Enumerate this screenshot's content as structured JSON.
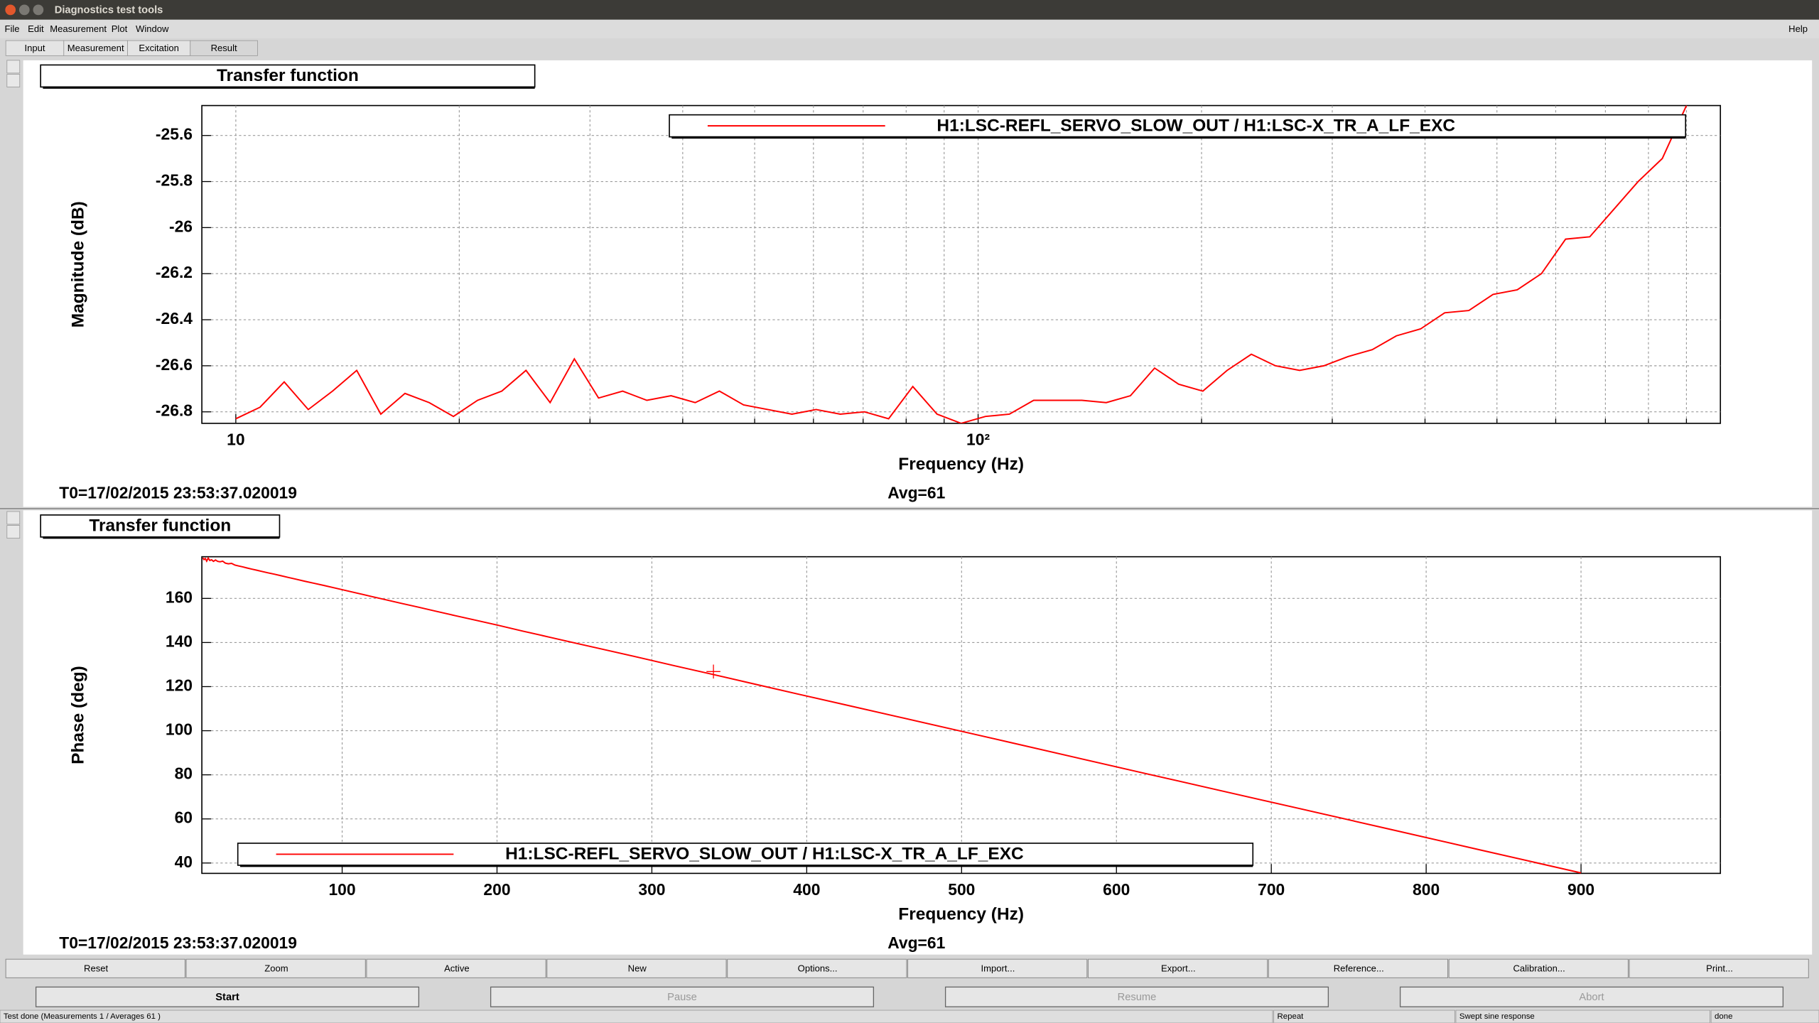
{
  "window": {
    "title": "Diagnostics test tools"
  },
  "menu": {
    "items": [
      "File",
      "Edit",
      "Measurement",
      "Plot",
      "Window"
    ],
    "help": "Help"
  },
  "tabs": [
    "Input",
    "Measurement",
    "Excitation",
    "Result"
  ],
  "chart_data": [
    {
      "type": "line",
      "title": "Transfer function",
      "x_label": "Frequency (Hz)",
      "y_label": "Magnitude (dB)",
      "x": [
        10,
        10.78,
        11.62,
        12.52,
        13.5,
        14.55,
        15.68,
        16.9,
        18.22,
        19.64,
        21.17,
        22.82,
        24.6,
        26.51,
        28.58,
        30.81,
        33.2,
        35.79,
        38.58,
        41.58,
        44.82,
        48.31,
        52.07,
        56.13,
        60.5,
        65.21,
        70.29,
        75.76,
        81.66,
        88.03,
        94.87,
        102.3,
        110.2,
        118.8,
        128.1,
        138,
        148.8,
        160.4,
        172.9,
        186.3,
        200.8,
        216.5,
        233.4,
        251.5,
        271.1,
        292.3,
        315,
        339.6,
        366,
        394.5,
        425.2,
        458.3,
        494,
        532.5,
        574,
        618.7,
        666.8,
        718.8,
        774.8,
        835.1,
        900
      ],
      "series": [
        {
          "name": "H1:LSC-REFL_SERVO_SLOW_OUT / H1:LSC-X_TR_A_LF_EXC",
          "color": "#ff0000",
          "values": [
            -26.83,
            -26.78,
            -26.67,
            -26.79,
            -26.71,
            -26.62,
            -26.81,
            -26.72,
            -26.76,
            -26.82,
            -26.75,
            -26.71,
            -26.62,
            -26.76,
            -26.57,
            -26.74,
            -26.71,
            -26.75,
            -26.73,
            -26.76,
            -26.71,
            -26.77,
            -26.79,
            -26.81,
            -26.79,
            -26.81,
            -26.8,
            -26.83,
            -26.69,
            -26.81,
            -26.85,
            -26.82,
            -26.81,
            -26.75,
            -26.75,
            -26.75,
            -26.76,
            -26.73,
            -26.61,
            -26.68,
            -26.71,
            -26.62,
            -26.55,
            -26.6,
            -26.62,
            -26.6,
            -26.56,
            -26.53,
            -26.47,
            -26.44,
            -26.37,
            -26.36,
            -26.29,
            -26.27,
            -26.2,
            -26.05,
            -26.04,
            -25.92,
            -25.8,
            -25.7,
            -25.47
          ]
        }
      ],
      "log_x": true,
      "xlim": [
        9,
        1000
      ],
      "ylim": [
        -26.85,
        -25.47
      ],
      "xticks": [
        10,
        {
          "value": 100,
          "label": "10²"
        }
      ],
      "xminor": [
        20,
        30,
        40,
        50,
        60,
        70,
        80,
        90,
        200,
        300,
        400,
        500,
        600,
        700,
        800,
        900
      ],
      "yticks": [
        -25.6,
        -25.8,
        -26,
        -26.2,
        -26.4,
        -26.6,
        -26.8
      ],
      "grid": true,
      "legend": "top-right",
      "annotations": [
        "T0=17/02/2015 23:53:37.020019",
        "Avg=61"
      ]
    },
    {
      "type": "line",
      "title": "Transfer function",
      "x_label": "Frequency (Hz)",
      "y_label": "Phase (deg)",
      "x": [
        10,
        10.78,
        11.62,
        12.52,
        13.5,
        14.55,
        15.68,
        16.9,
        18.22,
        19.64,
        21.17,
        22.82,
        24.6,
        26.51,
        28.58,
        30.81,
        33.2,
        35.79,
        38.58,
        41.58,
        44.82,
        48.31,
        52.07,
        56.13,
        60.5,
        65.21,
        70.29,
        75.76,
        81.66,
        88.03,
        94.87,
        102.3,
        110.2,
        118.8,
        128.1,
        138,
        148.8,
        160.4,
        172.9,
        186.3,
        200.8,
        216.5,
        233.4,
        251.5,
        271.1,
        292.3,
        315,
        339.6,
        366,
        394.5,
        425.2,
        458.3,
        494,
        532.5,
        574,
        618.7,
        666.8,
        718.8,
        774.8,
        835.1,
        900
      ],
      "series": [
        {
          "name": "H1:LSC-REFL_SERVO_SLOW_OUT / H1:LSC-X_TR_A_LF_EXC",
          "color": "#ff0000",
          "values": [
            178.4,
            177.6,
            178.1,
            176.9,
            178.3,
            177.2,
            177.5,
            176.8,
            177.4,
            176.8,
            176.6,
            176.9,
            176,
            175.7,
            175.9,
            175.1,
            174.7,
            174.3,
            173.8,
            173.3,
            172.8,
            172.2,
            171.6,
            171,
            170.3,
            169.5,
            168.7,
            167.8,
            166.9,
            165.9,
            164.8,
            163.6,
            162.3,
            160.9,
            159.4,
            157.8,
            156.1,
            154.2,
            152.2,
            150.1,
            147.8,
            145.2,
            142.5,
            139.6,
            136.5,
            133.1,
            129.4,
            125.5,
            121.2,
            116.6,
            111.7,
            106.4,
            100.7,
            94.5,
            87.8,
            80.6,
            72.9,
            64.6,
            55.6,
            45.9,
            35.5
          ]
        }
      ],
      "log_x": false,
      "xlim": [
        9.4,
        990
      ],
      "ylim": [
        35.3,
        178.9
      ],
      "xticks": [
        100,
        200,
        300,
        400,
        500,
        600,
        700,
        800,
        900
      ],
      "yticks": [
        160,
        140,
        120,
        100,
        80,
        60,
        40
      ],
      "grid": true,
      "legend": "bottom-left",
      "annotations": [
        "T0=17/02/2015 23:53:37.020019",
        "Avg=61"
      ]
    }
  ],
  "buttons": [
    "Reset",
    "Zoom",
    "Active",
    "New",
    "Options...",
    "Import...",
    "Export...",
    "Reference...",
    "Calibration...",
    "Print..."
  ],
  "controls": [
    {
      "label": "Start",
      "enabled": true
    },
    {
      "label": "Pause",
      "enabled": false
    },
    {
      "label": "Resume",
      "enabled": false
    },
    {
      "label": "Abort",
      "enabled": false
    }
  ],
  "status": [
    "Test done (Measurements 1 / Averages 61 )",
    "Repeat",
    "Swept sine response",
    "done"
  ]
}
